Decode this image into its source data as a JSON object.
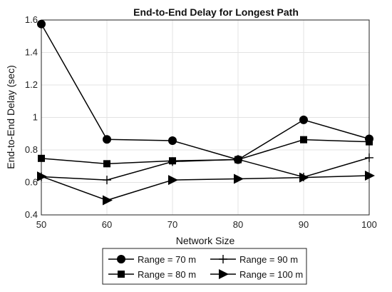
{
  "chart_data": {
    "type": "line",
    "title": "End-to-End Delay for Longest Path",
    "xlabel": "Network Size",
    "ylabel": "End-to-End Delay (sec)",
    "x": [
      50,
      60,
      70,
      80,
      90,
      100
    ],
    "xlim": [
      50,
      100
    ],
    "ylim": [
      0.4,
      1.6
    ],
    "x_ticks": [
      "50",
      "60",
      "70",
      "80",
      "90",
      "100"
    ],
    "y_ticks": [
      "0.4",
      "0.6",
      "0.8",
      "1",
      "1.2",
      "1.4",
      "1.6"
    ],
    "grid": true,
    "legend_position": "bottom",
    "series": [
      {
        "name": "Range = 70 m",
        "marker": "circle",
        "values": [
          1.575,
          0.865,
          0.857,
          0.74,
          0.985,
          0.868
        ]
      },
      {
        "name": "Range = 90 m",
        "marker": "plus",
        "values": [
          0.635,
          0.615,
          0.728,
          0.742,
          0.633,
          0.752
        ]
      },
      {
        "name": "Range = 80 m",
        "marker": "square",
        "values": [
          0.748,
          0.715,
          0.733,
          0.74,
          0.863,
          0.85
        ]
      },
      {
        "name": "Range = 100 m",
        "marker": "triangle-right",
        "values": [
          0.637,
          0.49,
          0.615,
          0.622,
          0.63,
          0.642
        ]
      }
    ],
    "color": "#000000"
  }
}
